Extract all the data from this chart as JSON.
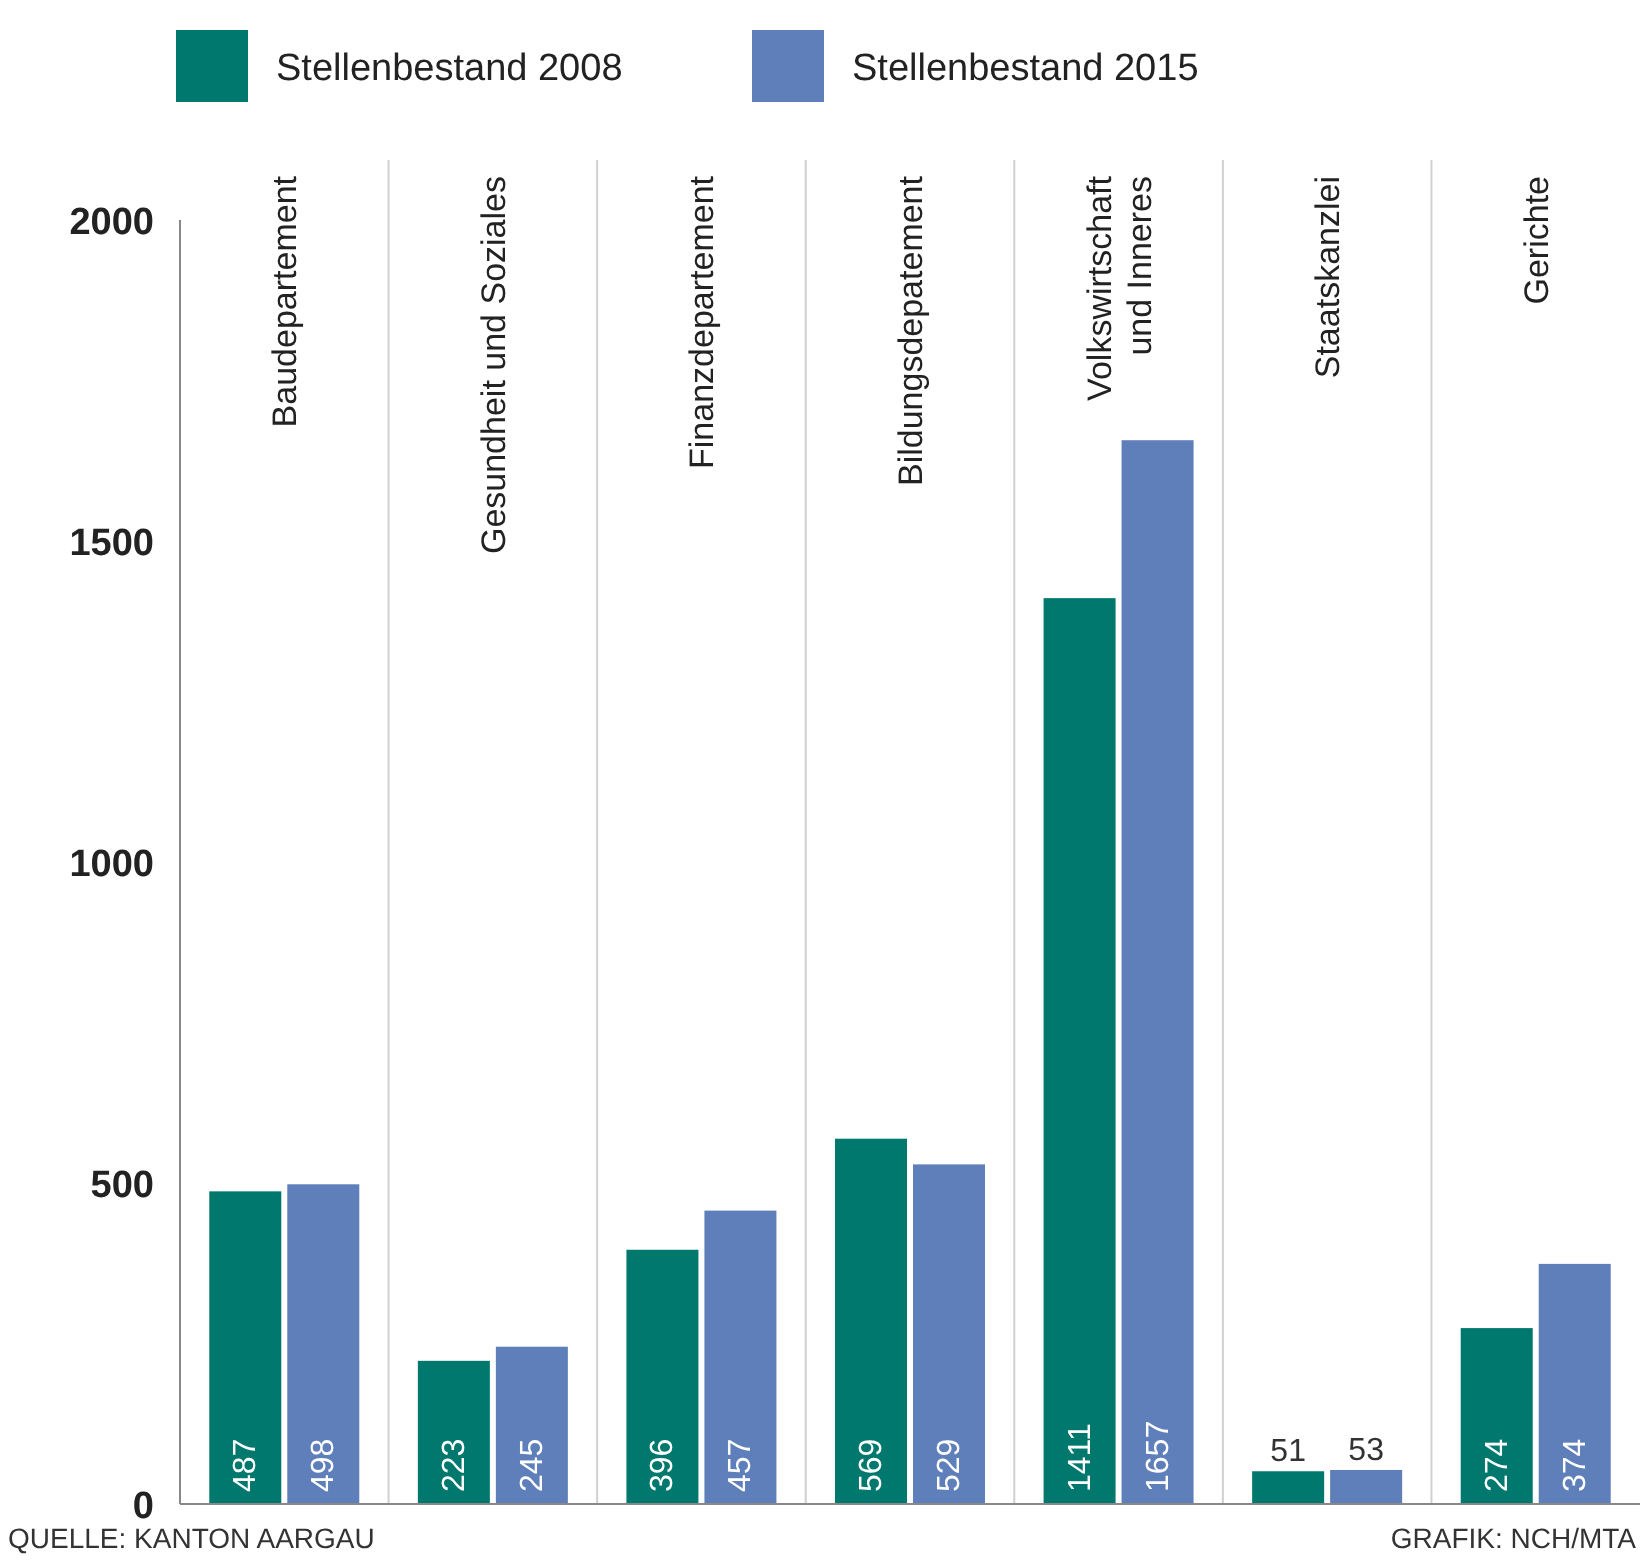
{
  "chart_data": {
    "type": "bar",
    "categories": [
      "Baudepartement",
      "Gesundheit und Soziales",
      "Finanzdepartement",
      "Bildungsdepatement",
      "Volkswirtschaft\nund Inneres",
      "Staatskanzlei",
      "Gerichte"
    ],
    "series": [
      {
        "name": "Stellenbestand 2008",
        "color": "#00786e",
        "values": [
          487,
          223,
          396,
          569,
          1411,
          51,
          274
        ]
      },
      {
        "name": "Stellenbestand 2015",
        "color": "#5f7fba",
        "values": [
          498,
          245,
          457,
          529,
          1657,
          53,
          374
        ]
      }
    ],
    "ylim": [
      0,
      2000
    ],
    "yticks": [
      0,
      500,
      1000,
      1500,
      2000
    ],
    "grid": "x",
    "legend": "top left",
    "data_labels": true,
    "annotations": [
      "QUELLE: KANTON AARGAU",
      "GRAFIK: NCH/MTA"
    ]
  }
}
